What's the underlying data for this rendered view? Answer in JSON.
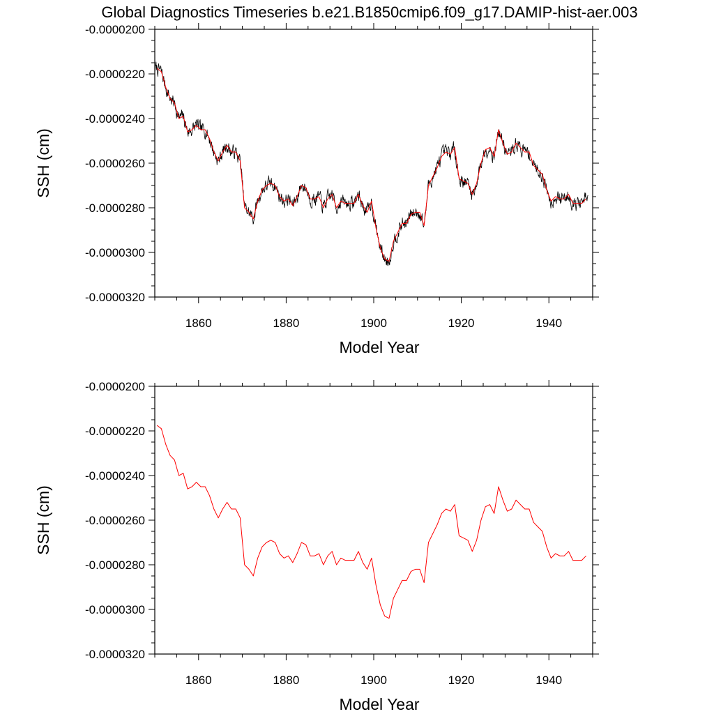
{
  "figure_title": "Global Diagnostics Timeseries b.e21.B1850cmip6.f09_g17.DAMIP-hist-aer.003",
  "chart_data": [
    {
      "type": "line",
      "xlabel": "Model Year",
      "ylabel": "SSH (cm)",
      "xlim": [
        1850,
        1950
      ],
      "ylim": [
        -3.2e-05,
        -2e-05
      ],
      "x_ticks": [
        1860,
        1880,
        1900,
        1920,
        1940
      ],
      "x_tick_labels": [
        "1860",
        "1880",
        "1900",
        "1920",
        "1940"
      ],
      "y_ticks": [
        -2e-05,
        -2.2e-05,
        -2.4e-05,
        -2.6e-05,
        -2.8e-05,
        -3e-05,
        -3.2e-05
      ],
      "y_tick_labels": [
        "-0.0000200",
        "-0.0000220",
        "-0.0000240",
        "-0.0000260",
        "-0.0000280",
        "-0.0000300",
        "-0.0000320"
      ],
      "grid": false,
      "series": [
        {
          "color": "#000000",
          "resolution": "monthly",
          "derived_from_annual": true,
          "noise_amplitude": 2.5e-07,
          "seed": 7
        },
        {
          "color": "#ff0000",
          "resolution": "annual",
          "values_key": "annual"
        }
      ]
    },
    {
      "type": "line",
      "xlabel": "Model Year",
      "ylabel": "SSH (cm)",
      "xlim": [
        1850,
        1950
      ],
      "ylim": [
        -3.2e-05,
        -2e-05
      ],
      "x_ticks": [
        1860,
        1880,
        1900,
        1920,
        1940
      ],
      "x_tick_labels": [
        "1860",
        "1880",
        "1900",
        "1920",
        "1940"
      ],
      "y_ticks": [
        -2e-05,
        -2.2e-05,
        -2.4e-05,
        -2.6e-05,
        -2.8e-05,
        -3e-05,
        -3.2e-05
      ],
      "y_tick_labels": [
        "-0.0000200",
        "-0.0000220",
        "-0.0000240",
        "-0.0000260",
        "-0.0000280",
        "-0.0000300",
        "-0.0000320"
      ],
      "grid": false,
      "series": [
        {
          "color": "#ff0000",
          "resolution": "annual",
          "values_key": "annual"
        }
      ]
    }
  ],
  "annual": {
    "x_start": 1850.5,
    "x_step": 1,
    "values": [
      -2.175e-05,
      -2.19e-05,
      -2.26e-05,
      -2.31e-05,
      -2.33e-05,
      -2.4e-05,
      -2.39e-05,
      -2.46e-05,
      -2.45e-05,
      -2.43e-05,
      -2.45e-05,
      -2.45e-05,
      -2.49e-05,
      -2.55e-05,
      -2.59e-05,
      -2.55e-05,
      -2.52e-05,
      -2.55e-05,
      -2.55e-05,
      -2.59e-05,
      -2.8e-05,
      -2.82e-05,
      -2.85e-05,
      -2.77e-05,
      -2.72e-05,
      -2.7e-05,
      -2.69e-05,
      -2.7e-05,
      -2.75e-05,
      -2.77e-05,
      -2.76e-05,
      -2.79e-05,
      -2.75e-05,
      -2.7e-05,
      -2.71e-05,
      -2.76e-05,
      -2.76e-05,
      -2.75e-05,
      -2.8e-05,
      -2.76e-05,
      -2.74e-05,
      -2.8e-05,
      -2.77e-05,
      -2.78e-05,
      -2.78e-05,
      -2.78e-05,
      -2.74e-05,
      -2.79e-05,
      -2.82e-05,
      -2.77e-05,
      -2.89e-05,
      -2.98e-05,
      -3.03e-05,
      -3.04e-05,
      -2.95e-05,
      -2.91e-05,
      -2.87e-05,
      -2.87e-05,
      -2.83e-05,
      -2.82e-05,
      -2.82e-05,
      -2.88e-05,
      -2.7e-05,
      -2.66e-05,
      -2.62e-05,
      -2.57e-05,
      -2.55e-05,
      -2.56e-05,
      -2.53e-05,
      -2.67e-05,
      -2.68e-05,
      -2.69e-05,
      -2.74e-05,
      -2.69e-05,
      -2.6e-05,
      -2.54e-05,
      -2.53e-05,
      -2.57e-05,
      -2.45e-05,
      -2.51e-05,
      -2.56e-05,
      -2.55e-05,
      -2.51e-05,
      -2.53e-05,
      -2.55e-05,
      -2.55e-05,
      -2.61e-05,
      -2.63e-05,
      -2.65e-05,
      -2.72e-05,
      -2.77e-05,
      -2.75e-05,
      -2.76e-05,
      -2.76e-05,
      -2.74e-05,
      -2.78e-05,
      -2.78e-05,
      -2.78e-05,
      -2.76e-05
    ]
  }
}
